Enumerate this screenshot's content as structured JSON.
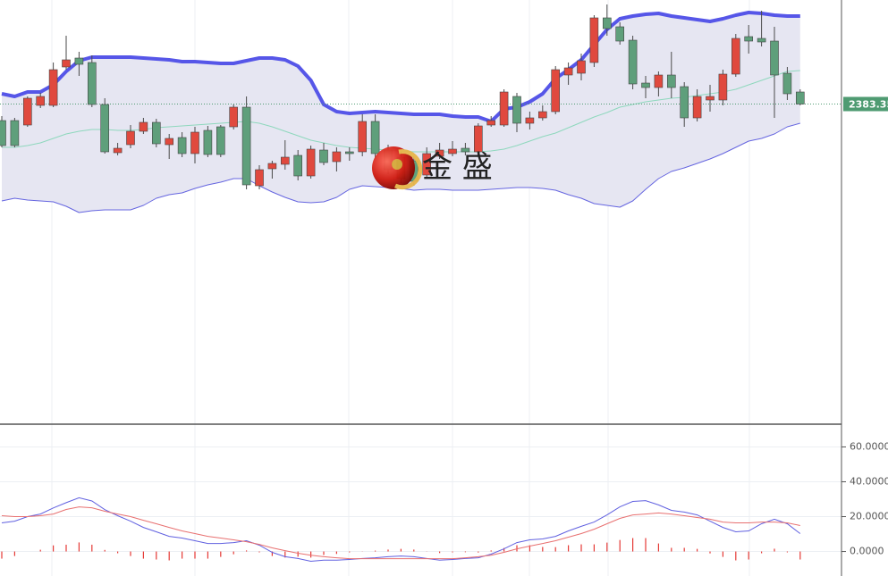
{
  "chart_data": [
    {
      "type": "candlestick",
      "open": [
        2381.5,
        2381.5,
        2381,
        2383.2,
        2383.2,
        2387.5,
        2388.5,
        2388,
        2383.3,
        2377.9,
        2378.8,
        2380.3,
        2381.3,
        2378.8,
        2379.6,
        2377.8,
        2380.4,
        2380.8,
        2380.8,
        2383,
        2374.2,
        2376.1,
        2376.6,
        2377.6,
        2375.3,
        2378.2,
        2376.9,
        2378,
        2378,
        2381.4,
        2378.2,
        2377.4,
        2377,
        2375.4,
        2377.5,
        2377.8,
        2378.4,
        2378,
        2381,
        2381,
        2384.2,
        2381.2,
        2381.8,
        2382.5,
        2386.6,
        2386.8,
        2388,
        2393,
        2392,
        2390.5,
        2385.7,
        2385.2,
        2386.6,
        2385.3,
        2381.8,
        2383.8,
        2383.8,
        2386.7,
        2390.9,
        2390.7,
        2390.4,
        2386.8,
        2384.7
      ],
      "high": [
        2382,
        2381.8,
        2384.2,
        2384.6,
        2388,
        2391,
        2389.2,
        2388.8,
        2384,
        2379,
        2381,
        2381.8,
        2381.7,
        2380,
        2380.2,
        2380.8,
        2380.9,
        2381,
        2383.3,
        2384.2,
        2376.5,
        2377,
        2379.3,
        2378.2,
        2378.7,
        2379,
        2378.5,
        2378.5,
        2382.2,
        2382.2,
        2378.8,
        2378,
        2377.5,
        2378.5,
        2379,
        2379.2,
        2379,
        2381.2,
        2382,
        2385,
        2384.6,
        2382.5,
        2383.2,
        2387.6,
        2388,
        2389,
        2393.3,
        2394.5,
        2392.5,
        2391,
        2386.5,
        2387,
        2389.2,
        2385.8,
        2385,
        2385.5,
        2387.2,
        2391.2,
        2392.2,
        2393.8,
        2392,
        2387.5,
        2385
      ],
      "low": [
        2378.5,
        2378.5,
        2380.8,
        2382.9,
        2383,
        2387.2,
        2386.5,
        2383,
        2377.8,
        2377.6,
        2378.4,
        2380,
        2378.5,
        2377.2,
        2377.4,
        2376.7,
        2377.4,
        2377.4,
        2380.5,
        2373.8,
        2373.8,
        2375,
        2376,
        2374.8,
        2375,
        2376.5,
        2375.8,
        2377,
        2377.5,
        2377.2,
        2375.5,
        2374.5,
        2374.2,
        2375,
        2377.2,
        2377.5,
        2377.6,
        2377.8,
        2380.8,
        2380.8,
        2380.2,
        2380.5,
        2381.5,
        2382.2,
        2385.5,
        2386,
        2387.5,
        2391,
        2390,
        2385,
        2384,
        2384.2,
        2384,
        2380.8,
        2381.4,
        2382.5,
        2383.2,
        2386.4,
        2389,
        2389.8,
        2381.8,
        2383.8,
        2383.2
      ],
      "close": [
        2378.7,
        2378.7,
        2384,
        2384.2,
        2387.2,
        2388.3,
        2387.8,
        2383.3,
        2378,
        2378.4,
        2380.3,
        2381.3,
        2378.9,
        2379.5,
        2377.8,
        2380.2,
        2377.7,
        2377.7,
        2383,
        2374.3,
        2376,
        2376.7,
        2377.4,
        2375.3,
        2378.3,
        2376.8,
        2378,
        2377.8,
        2381.4,
        2377.8,
        2376,
        2375,
        2374.7,
        2377.8,
        2378.2,
        2378.3,
        2378,
        2380.9,
        2381.5,
        2384.7,
        2381.2,
        2381.8,
        2382.5,
        2387.2,
        2387.4,
        2388.2,
        2393,
        2391.8,
        2390.4,
        2385.6,
        2385.2,
        2386.6,
        2385.2,
        2381.8,
        2384.2,
        2384.2,
        2386.7,
        2390.7,
        2390.4,
        2390.3,
        2386.6,
        2384.5,
        2383.35
      ],
      "up_color": "#e0493e",
      "down_color": "#5f9f7b",
      "ylim": [
        2347.5,
        2395
      ],
      "bands": [
        {
          "color": "#5656e8",
          "values": [
            2384.5,
            2384.2,
            2384.7,
            2384.7,
            2385.5,
            2387,
            2388.2,
            2388.6,
            2388.6,
            2388.6,
            2388.6,
            2388.5,
            2388.4,
            2388.3,
            2388.1,
            2388.1,
            2388,
            2387.9,
            2387.9,
            2388.2,
            2388.5,
            2388.5,
            2388.3,
            2387.6,
            2386,
            2383.3,
            2382.5,
            2382.3,
            2382.4,
            2382.5,
            2382.4,
            2382.3,
            2382.2,
            2382.2,
            2382.2,
            2382,
            2381.9,
            2381.9,
            2381.4,
            2382.8,
            2383,
            2383.6,
            2384.5,
            2386.2,
            2387.2,
            2388.3,
            2390,
            2391.7,
            2392.9,
            2393.2,
            2393.4,
            2393.5,
            2393.2,
            2393,
            2392.8,
            2392.6,
            2392.9,
            2393.3,
            2393.6,
            2393.5,
            2393.3,
            2393.2,
            2393.2
          ]
        },
        {
          "color": "#8ed8bd",
          "values": [
            2378.5,
            2378.5,
            2378.7,
            2379,
            2379.5,
            2380,
            2380.3,
            2380.5,
            2380.5,
            2380.4,
            2380.4,
            2380.5,
            2380.7,
            2380.8,
            2380.9,
            2381,
            2381.1,
            2381.2,
            2381.3,
            2381.4,
            2381.2,
            2380.8,
            2380.3,
            2379.8,
            2379.3,
            2379,
            2378.7,
            2378.5,
            2378.4,
            2378.3,
            2378.2,
            2378.1,
            2378,
            2378,
            2378,
            2378,
            2378,
            2378,
            2378.1,
            2378.3,
            2378.7,
            2379.2,
            2379.7,
            2380.1,
            2380.7,
            2381.3,
            2381.9,
            2382.4,
            2383,
            2383.3,
            2383.6,
            2383.8,
            2384,
            2384.1,
            2384.3,
            2384.5,
            2384.7,
            2385,
            2385.5,
            2386,
            2386.5,
            2387,
            2387.1
          ]
        },
        {
          "color": "#6565e0",
          "values": [
            2372.5,
            2372.8,
            2372.6,
            2372.5,
            2372.4,
            2371.9,
            2371.2,
            2371.4,
            2371.5,
            2371.5,
            2371.5,
            2372,
            2372.8,
            2373.2,
            2373.4,
            2373.9,
            2374.3,
            2374.6,
            2375,
            2375,
            2374.2,
            2373.5,
            2372.9,
            2372.4,
            2372.3,
            2372.4,
            2372.9,
            2373.8,
            2374.2,
            2374.1,
            2374,
            2373.9,
            2373.7,
            2373.8,
            2373.8,
            2373.7,
            2373.7,
            2373.7,
            2373.8,
            2373.9,
            2374,
            2374,
            2373.9,
            2373.7,
            2373.2,
            2372.8,
            2372.2,
            2372,
            2371.8,
            2372.5,
            2373.8,
            2375,
            2375.8,
            2376.2,
            2376.7,
            2377.2,
            2377.8,
            2378.5,
            2379.2,
            2379.5,
            2380,
            2380.8,
            2381.2
          ]
        }
      ],
      "band_fill": "#e6e6f2",
      "last_price": {
        "value": 2383.35,
        "label": "2383.350"
      },
      "last_price_color": "#4f9b72",
      "watermark": "金 盛"
    },
    {
      "type": "macd",
      "series": [
        {
          "color": "#6060e0",
          "values": [
            16.4,
            17.4,
            20,
            21.5,
            25,
            28,
            30.8,
            29,
            24,
            20.5,
            17.4,
            13.8,
            11.3,
            8.7,
            7.7,
            6.2,
            4.6,
            4.6,
            5.1,
            6.2,
            3.6,
            -0.5,
            -3,
            -4,
            -5.6,
            -5,
            -5,
            -4.6,
            -4,
            -3.6,
            -3,
            -2.6,
            -3,
            -4,
            -5,
            -4.6,
            -4,
            -3.6,
            -1.5,
            1.5,
            5.1,
            6.7,
            7.2,
            8.7,
            11.8,
            14.4,
            16.9,
            21,
            25.6,
            28.7,
            29.2,
            26.7,
            23.6,
            22.6,
            21,
            17.4,
            13.8,
            11.3,
            11.8,
            15.9,
            18.5,
            15.9,
            10.3
          ]
        },
        {
          "color": "#e87070",
          "values": [
            20.5,
            20,
            20,
            20.5,
            21.5,
            24.1,
            25.6,
            25.1,
            23.1,
            21.5,
            20,
            17.9,
            15.9,
            13.8,
            11.8,
            10.3,
            8.7,
            7.7,
            6.7,
            5.6,
            4.1,
            2.1,
            0.5,
            -1,
            -2.1,
            -3,
            -3.6,
            -4.1,
            -4.1,
            -4.1,
            -4.1,
            -4.1,
            -4.1,
            -4.1,
            -4.1,
            -4.1,
            -3.6,
            -3,
            -2.1,
            -0.5,
            1.5,
            3.1,
            4.6,
            6.2,
            8.2,
            10.3,
            12.8,
            15.9,
            19,
            21,
            21.5,
            22.1,
            21.5,
            20.5,
            19.5,
            18.5,
            16.9,
            16.4,
            16.4,
            16.9,
            16.9,
            16.4,
            14.9
          ]
        }
      ],
      "histogram": {
        "color": "#e53935",
        "values": [
          -4.1,
          -2.6,
          0,
          1,
          3.5,
          3.9,
          5.2,
          3.9,
          0.9,
          -1,
          -2.6,
          -4.1,
          -4.6,
          -5.1,
          -4.1,
          -4.1,
          -4.1,
          -3.1,
          -1.6,
          0.6,
          -0.5,
          -2.6,
          -3.5,
          -3,
          -3.5,
          -2,
          -1.4,
          -0.5,
          0.1,
          0.5,
          1.1,
          1.5,
          1.1,
          0.1,
          -0.9,
          -0.5,
          -0.4,
          -0.6,
          0.6,
          2,
          3.6,
          3.6,
          2.6,
          2.5,
          3.6,
          4.1,
          4.1,
          5.1,
          6.6,
          7.7,
          7.7,
          4.6,
          2.1,
          2.1,
          1.5,
          -1.1,
          -3.1,
          -5.1,
          -4.6,
          -1,
          1.6,
          -0.5,
          -4.6
        ]
      },
      "ylim": [
        -11.5,
        71.5
      ],
      "yticks": [
        {
          "value": 60,
          "label": "60.0000"
        },
        {
          "value": 40,
          "label": "40.0000"
        },
        {
          "value": 20,
          "label": "20.0000"
        },
        {
          "value": 0,
          "label": "0.0000"
        }
      ],
      "grid": true
    }
  ]
}
